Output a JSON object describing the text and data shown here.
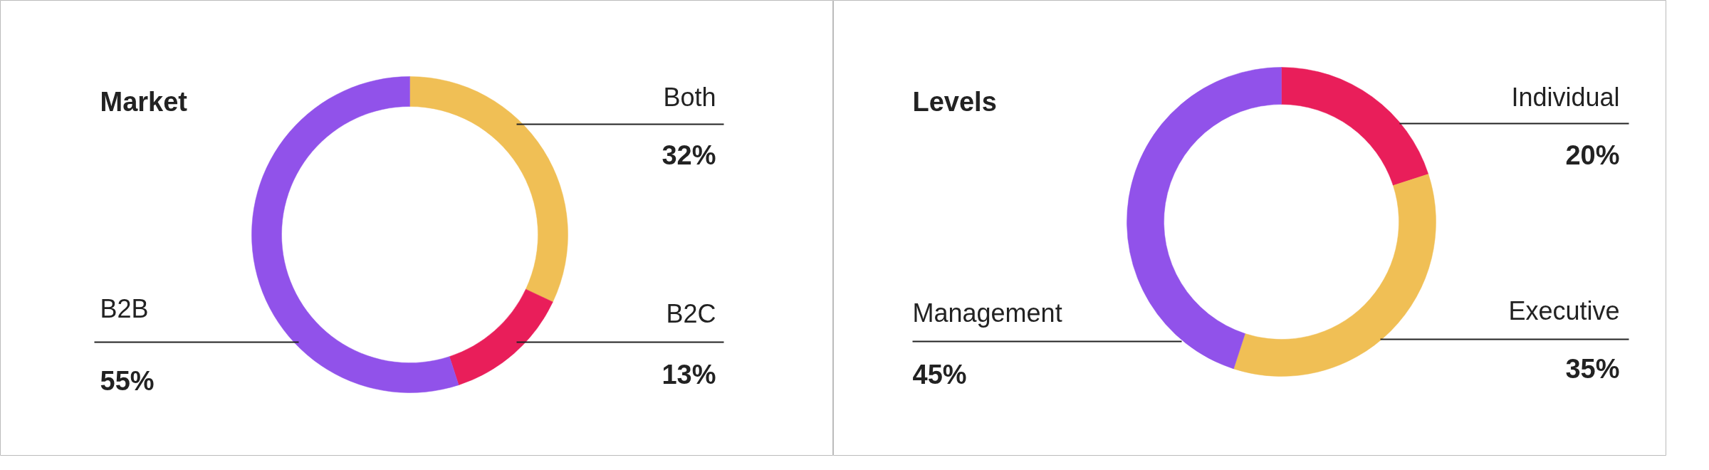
{
  "chart_data": [
    {
      "type": "donut",
      "title": "Market",
      "categories": [
        "Both",
        "B2C",
        "B2B"
      ],
      "values": [
        32,
        13,
        55
      ],
      "colors": [
        "#f0bf55",
        "#e91e5a",
        "#9152ea"
      ],
      "value_labels": [
        "32%",
        "13%",
        "55%"
      ]
    },
    {
      "type": "donut",
      "title": "Levels",
      "categories": [
        "Individual",
        "Executive",
        "Management"
      ],
      "values": [
        20,
        35,
        45
      ],
      "colors": [
        "#e91e5a",
        "#f0bf55",
        "#9152ea"
      ],
      "value_labels": [
        "20%",
        "35%",
        "45%"
      ]
    }
  ]
}
